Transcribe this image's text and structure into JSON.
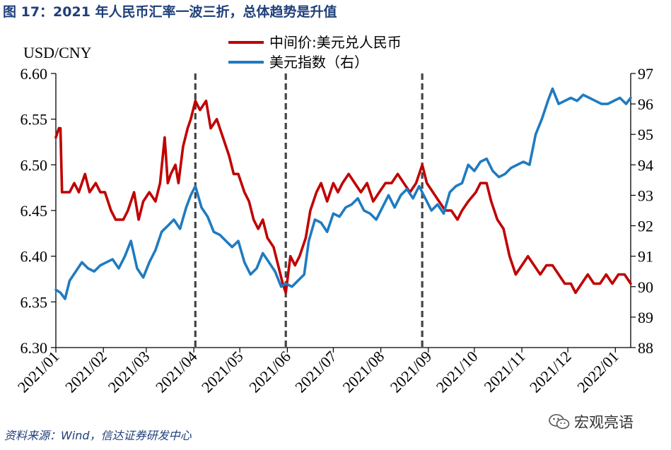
{
  "figure": {
    "title": "图 17：2021 年人民币汇率一波三折，总体趋势是升值",
    "source": "资料来源：Wind，信达证券研发中心",
    "watermark": "宏观亮语",
    "watermark_icon": "wechat-icon",
    "title_color": "#1f3f7a"
  },
  "chart_data": {
    "type": "line",
    "left_axis_label": "USD/CNY",
    "y_left": {
      "min": 6.3,
      "max": 6.6,
      "ticks": [
        "6.30",
        "6.35",
        "6.40",
        "6.45",
        "6.50",
        "6.55",
        "6.60"
      ]
    },
    "y_right": {
      "min": 88,
      "max": 97,
      "ticks": [
        "88",
        "89",
        "90",
        "91",
        "92",
        "93",
        "94",
        "95",
        "96",
        "97"
      ]
    },
    "x_range": {
      "start": "2021-01-04",
      "end": "2022-01-14"
    },
    "x_ticks": [
      {
        "date": "2021-01-04",
        "label": "2021/01"
      },
      {
        "date": "2021-02-04",
        "label": "2021/02"
      },
      {
        "date": "2021-03-04",
        "label": "2021/03"
      },
      {
        "date": "2021-04-04",
        "label": "2021/04"
      },
      {
        "date": "2021-05-04",
        "label": "2021/05"
      },
      {
        "date": "2021-06-04",
        "label": "2021/06"
      },
      {
        "date": "2021-07-04",
        "label": "2021/07"
      },
      {
        "date": "2021-08-04",
        "label": "2021/08"
      },
      {
        "date": "2021-09-04",
        "label": "2021/09"
      },
      {
        "date": "2021-10-04",
        "label": "2021/10"
      },
      {
        "date": "2021-11-04",
        "label": "2021/11"
      },
      {
        "date": "2021-12-04",
        "label": "2021/12"
      },
      {
        "date": "2022-01-04",
        "label": "2022/01"
      }
    ],
    "vlines": [
      "2021-04-05",
      "2021-06-03",
      "2021-08-31"
    ],
    "grid": false,
    "legend_position": "top-center",
    "series": [
      {
        "name": "中间价:美元兑人民币",
        "axis": "left",
        "color": "#c00000",
        "points": [
          [
            "2021-01-04",
            6.53
          ],
          [
            "2021-01-06",
            6.54
          ],
          [
            "2021-01-07",
            6.54
          ],
          [
            "2021-01-08",
            6.47
          ],
          [
            "2021-01-10",
            6.47
          ],
          [
            "2021-01-13",
            6.47
          ],
          [
            "2021-01-16",
            6.48
          ],
          [
            "2021-01-19",
            6.47
          ],
          [
            "2021-01-23",
            6.49
          ],
          [
            "2021-01-26",
            6.47
          ],
          [
            "2021-01-30",
            6.48
          ],
          [
            "2021-02-02",
            6.47
          ],
          [
            "2021-02-05",
            6.47
          ],
          [
            "2021-02-09",
            6.45
          ],
          [
            "2021-02-12",
            6.44
          ],
          [
            "2021-02-17",
            6.44
          ],
          [
            "2021-02-20",
            6.45
          ],
          [
            "2021-02-24",
            6.47
          ],
          [
            "2021-02-27",
            6.44
          ],
          [
            "2021-03-02",
            6.46
          ],
          [
            "2021-03-06",
            6.47
          ],
          [
            "2021-03-10",
            6.46
          ],
          [
            "2021-03-13",
            6.48
          ],
          [
            "2021-03-16",
            6.53
          ],
          [
            "2021-03-18",
            6.48
          ],
          [
            "2021-03-20",
            6.49
          ],
          [
            "2021-03-23",
            6.5
          ],
          [
            "2021-03-25",
            6.48
          ],
          [
            "2021-03-28",
            6.52
          ],
          [
            "2021-03-31",
            6.54
          ],
          [
            "2021-04-02",
            6.55
          ],
          [
            "2021-04-05",
            6.57
          ],
          [
            "2021-04-08",
            6.56
          ],
          [
            "2021-04-12",
            6.57
          ],
          [
            "2021-04-15",
            6.54
          ],
          [
            "2021-04-19",
            6.55
          ],
          [
            "2021-04-23",
            6.53
          ],
          [
            "2021-04-27",
            6.51
          ],
          [
            "2021-04-30",
            6.49
          ],
          [
            "2021-05-03",
            6.49
          ],
          [
            "2021-05-07",
            6.47
          ],
          [
            "2021-05-10",
            6.46
          ],
          [
            "2021-05-13",
            6.44
          ],
          [
            "2021-05-16",
            6.43
          ],
          [
            "2021-05-19",
            6.44
          ],
          [
            "2021-05-22",
            6.42
          ],
          [
            "2021-05-26",
            6.41
          ],
          [
            "2021-05-29",
            6.39
          ],
          [
            "2021-06-01",
            6.37
          ],
          [
            "2021-06-03",
            6.36
          ],
          [
            "2021-06-06",
            6.4
          ],
          [
            "2021-06-09",
            6.39
          ],
          [
            "2021-06-12",
            6.4
          ],
          [
            "2021-06-16",
            6.42
          ],
          [
            "2021-06-19",
            6.45
          ],
          [
            "2021-06-23",
            6.47
          ],
          [
            "2021-06-26",
            6.48
          ],
          [
            "2021-06-30",
            6.46
          ],
          [
            "2021-07-04",
            6.48
          ],
          [
            "2021-07-07",
            6.47
          ],
          [
            "2021-07-10",
            6.48
          ],
          [
            "2021-07-14",
            6.49
          ],
          [
            "2021-07-18",
            6.48
          ],
          [
            "2021-07-22",
            6.47
          ],
          [
            "2021-07-26",
            6.48
          ],
          [
            "2021-07-30",
            6.46
          ],
          [
            "2021-08-03",
            6.47
          ],
          [
            "2021-08-07",
            6.48
          ],
          [
            "2021-08-11",
            6.48
          ],
          [
            "2021-08-15",
            6.49
          ],
          [
            "2021-08-19",
            6.48
          ],
          [
            "2021-08-23",
            6.47
          ],
          [
            "2021-08-27",
            6.48
          ],
          [
            "2021-08-31",
            6.5
          ],
          [
            "2021-09-03",
            6.48
          ],
          [
            "2021-09-07",
            6.47
          ],
          [
            "2021-09-11",
            6.46
          ],
          [
            "2021-09-15",
            6.45
          ],
          [
            "2021-09-19",
            6.45
          ],
          [
            "2021-09-23",
            6.44
          ],
          [
            "2021-09-26",
            6.45
          ],
          [
            "2021-09-30",
            6.46
          ],
          [
            "2021-10-05",
            6.47
          ],
          [
            "2021-10-08",
            6.48
          ],
          [
            "2021-10-12",
            6.48
          ],
          [
            "2021-10-15",
            6.46
          ],
          [
            "2021-10-19",
            6.44
          ],
          [
            "2021-10-23",
            6.43
          ],
          [
            "2021-10-27",
            6.4
          ],
          [
            "2021-10-31",
            6.38
          ],
          [
            "2021-11-04",
            6.39
          ],
          [
            "2021-11-08",
            6.4
          ],
          [
            "2021-11-12",
            6.39
          ],
          [
            "2021-11-16",
            6.38
          ],
          [
            "2021-11-20",
            6.39
          ],
          [
            "2021-11-24",
            6.39
          ],
          [
            "2021-11-28",
            6.38
          ],
          [
            "2021-12-02",
            6.37
          ],
          [
            "2021-12-06",
            6.37
          ],
          [
            "2021-12-09",
            6.36
          ],
          [
            "2021-12-13",
            6.37
          ],
          [
            "2021-12-17",
            6.38
          ],
          [
            "2021-12-21",
            6.37
          ],
          [
            "2021-12-25",
            6.37
          ],
          [
            "2021-12-29",
            6.38
          ],
          [
            "2022-01-02",
            6.37
          ],
          [
            "2022-01-06",
            6.38
          ],
          [
            "2022-01-10",
            6.38
          ],
          [
            "2022-01-14",
            6.37
          ]
        ]
      },
      {
        "name": "美元指数（右）",
        "axis": "right",
        "color": "#1f7bc0",
        "points": [
          [
            "2021-01-04",
            89.9
          ],
          [
            "2021-01-07",
            89.8
          ],
          [
            "2021-01-10",
            89.6
          ],
          [
            "2021-01-13",
            90.2
          ],
          [
            "2021-01-17",
            90.5
          ],
          [
            "2021-01-21",
            90.8
          ],
          [
            "2021-01-25",
            90.6
          ],
          [
            "2021-01-29",
            90.5
          ],
          [
            "2021-02-02",
            90.7
          ],
          [
            "2021-02-06",
            90.8
          ],
          [
            "2021-02-10",
            90.9
          ],
          [
            "2021-02-14",
            90.6
          ],
          [
            "2021-02-18",
            91.0
          ],
          [
            "2021-02-22",
            91.5
          ],
          [
            "2021-02-26",
            90.6
          ],
          [
            "2021-03-02",
            90.3
          ],
          [
            "2021-03-06",
            90.8
          ],
          [
            "2021-03-10",
            91.2
          ],
          [
            "2021-03-14",
            91.8
          ],
          [
            "2021-03-18",
            92.0
          ],
          [
            "2021-03-22",
            92.2
          ],
          [
            "2021-03-26",
            91.9
          ],
          [
            "2021-03-30",
            92.6
          ],
          [
            "2021-04-02",
            93.0
          ],
          [
            "2021-04-05",
            93.3
          ],
          [
            "2021-04-09",
            92.6
          ],
          [
            "2021-04-13",
            92.3
          ],
          [
            "2021-04-17",
            91.8
          ],
          [
            "2021-04-21",
            91.7
          ],
          [
            "2021-04-25",
            91.5
          ],
          [
            "2021-04-29",
            91.3
          ],
          [
            "2021-05-03",
            91.5
          ],
          [
            "2021-05-07",
            90.8
          ],
          [
            "2021-05-11",
            90.4
          ],
          [
            "2021-05-15",
            90.6
          ],
          [
            "2021-05-19",
            91.1
          ],
          [
            "2021-05-23",
            90.8
          ],
          [
            "2021-05-27",
            90.5
          ],
          [
            "2021-05-31",
            90.0
          ],
          [
            "2021-06-03",
            90.1
          ],
          [
            "2021-06-07",
            90.0
          ],
          [
            "2021-06-11",
            90.2
          ],
          [
            "2021-06-15",
            90.4
          ],
          [
            "2021-06-18",
            91.5
          ],
          [
            "2021-06-22",
            92.2
          ],
          [
            "2021-06-26",
            92.1
          ],
          [
            "2021-06-30",
            91.8
          ],
          [
            "2021-07-04",
            92.4
          ],
          [
            "2021-07-08",
            92.3
          ],
          [
            "2021-07-12",
            92.6
          ],
          [
            "2021-07-16",
            92.7
          ],
          [
            "2021-07-20",
            92.9
          ],
          [
            "2021-07-24",
            92.5
          ],
          [
            "2021-07-28",
            92.4
          ],
          [
            "2021-08-01",
            92.2
          ],
          [
            "2021-08-05",
            92.6
          ],
          [
            "2021-08-09",
            93.0
          ],
          [
            "2021-08-13",
            92.6
          ],
          [
            "2021-08-17",
            93.0
          ],
          [
            "2021-08-21",
            93.2
          ],
          [
            "2021-08-25",
            92.9
          ],
          [
            "2021-08-29",
            93.3
          ],
          [
            "2021-09-02",
            92.9
          ],
          [
            "2021-09-06",
            92.5
          ],
          [
            "2021-09-10",
            92.7
          ],
          [
            "2021-09-14",
            92.4
          ],
          [
            "2021-09-18",
            93.1
          ],
          [
            "2021-09-22",
            93.3
          ],
          [
            "2021-09-26",
            93.4
          ],
          [
            "2021-09-30",
            94.0
          ],
          [
            "2021-10-04",
            93.8
          ],
          [
            "2021-10-08",
            94.1
          ],
          [
            "2021-10-12",
            94.2
          ],
          [
            "2021-10-16",
            93.8
          ],
          [
            "2021-10-20",
            93.6
          ],
          [
            "2021-10-24",
            93.7
          ],
          [
            "2021-10-28",
            93.9
          ],
          [
            "2021-11-01",
            94.0
          ],
          [
            "2021-11-05",
            94.1
          ],
          [
            "2021-11-09",
            94.0
          ],
          [
            "2021-11-13",
            95.0
          ],
          [
            "2021-11-17",
            95.5
          ],
          [
            "2021-11-21",
            96.1
          ],
          [
            "2021-11-24",
            96.5
          ],
          [
            "2021-11-28",
            96.0
          ],
          [
            "2021-12-02",
            96.1
          ],
          [
            "2021-12-06",
            96.2
          ],
          [
            "2021-12-10",
            96.1
          ],
          [
            "2021-12-14",
            96.3
          ],
          [
            "2021-12-18",
            96.2
          ],
          [
            "2021-12-22",
            96.1
          ],
          [
            "2021-12-26",
            96.0
          ],
          [
            "2021-12-30",
            96.0
          ],
          [
            "2022-01-03",
            96.1
          ],
          [
            "2022-01-07",
            96.2
          ],
          [
            "2022-01-11",
            96.0
          ],
          [
            "2022-01-14",
            96.2
          ]
        ]
      }
    ]
  }
}
